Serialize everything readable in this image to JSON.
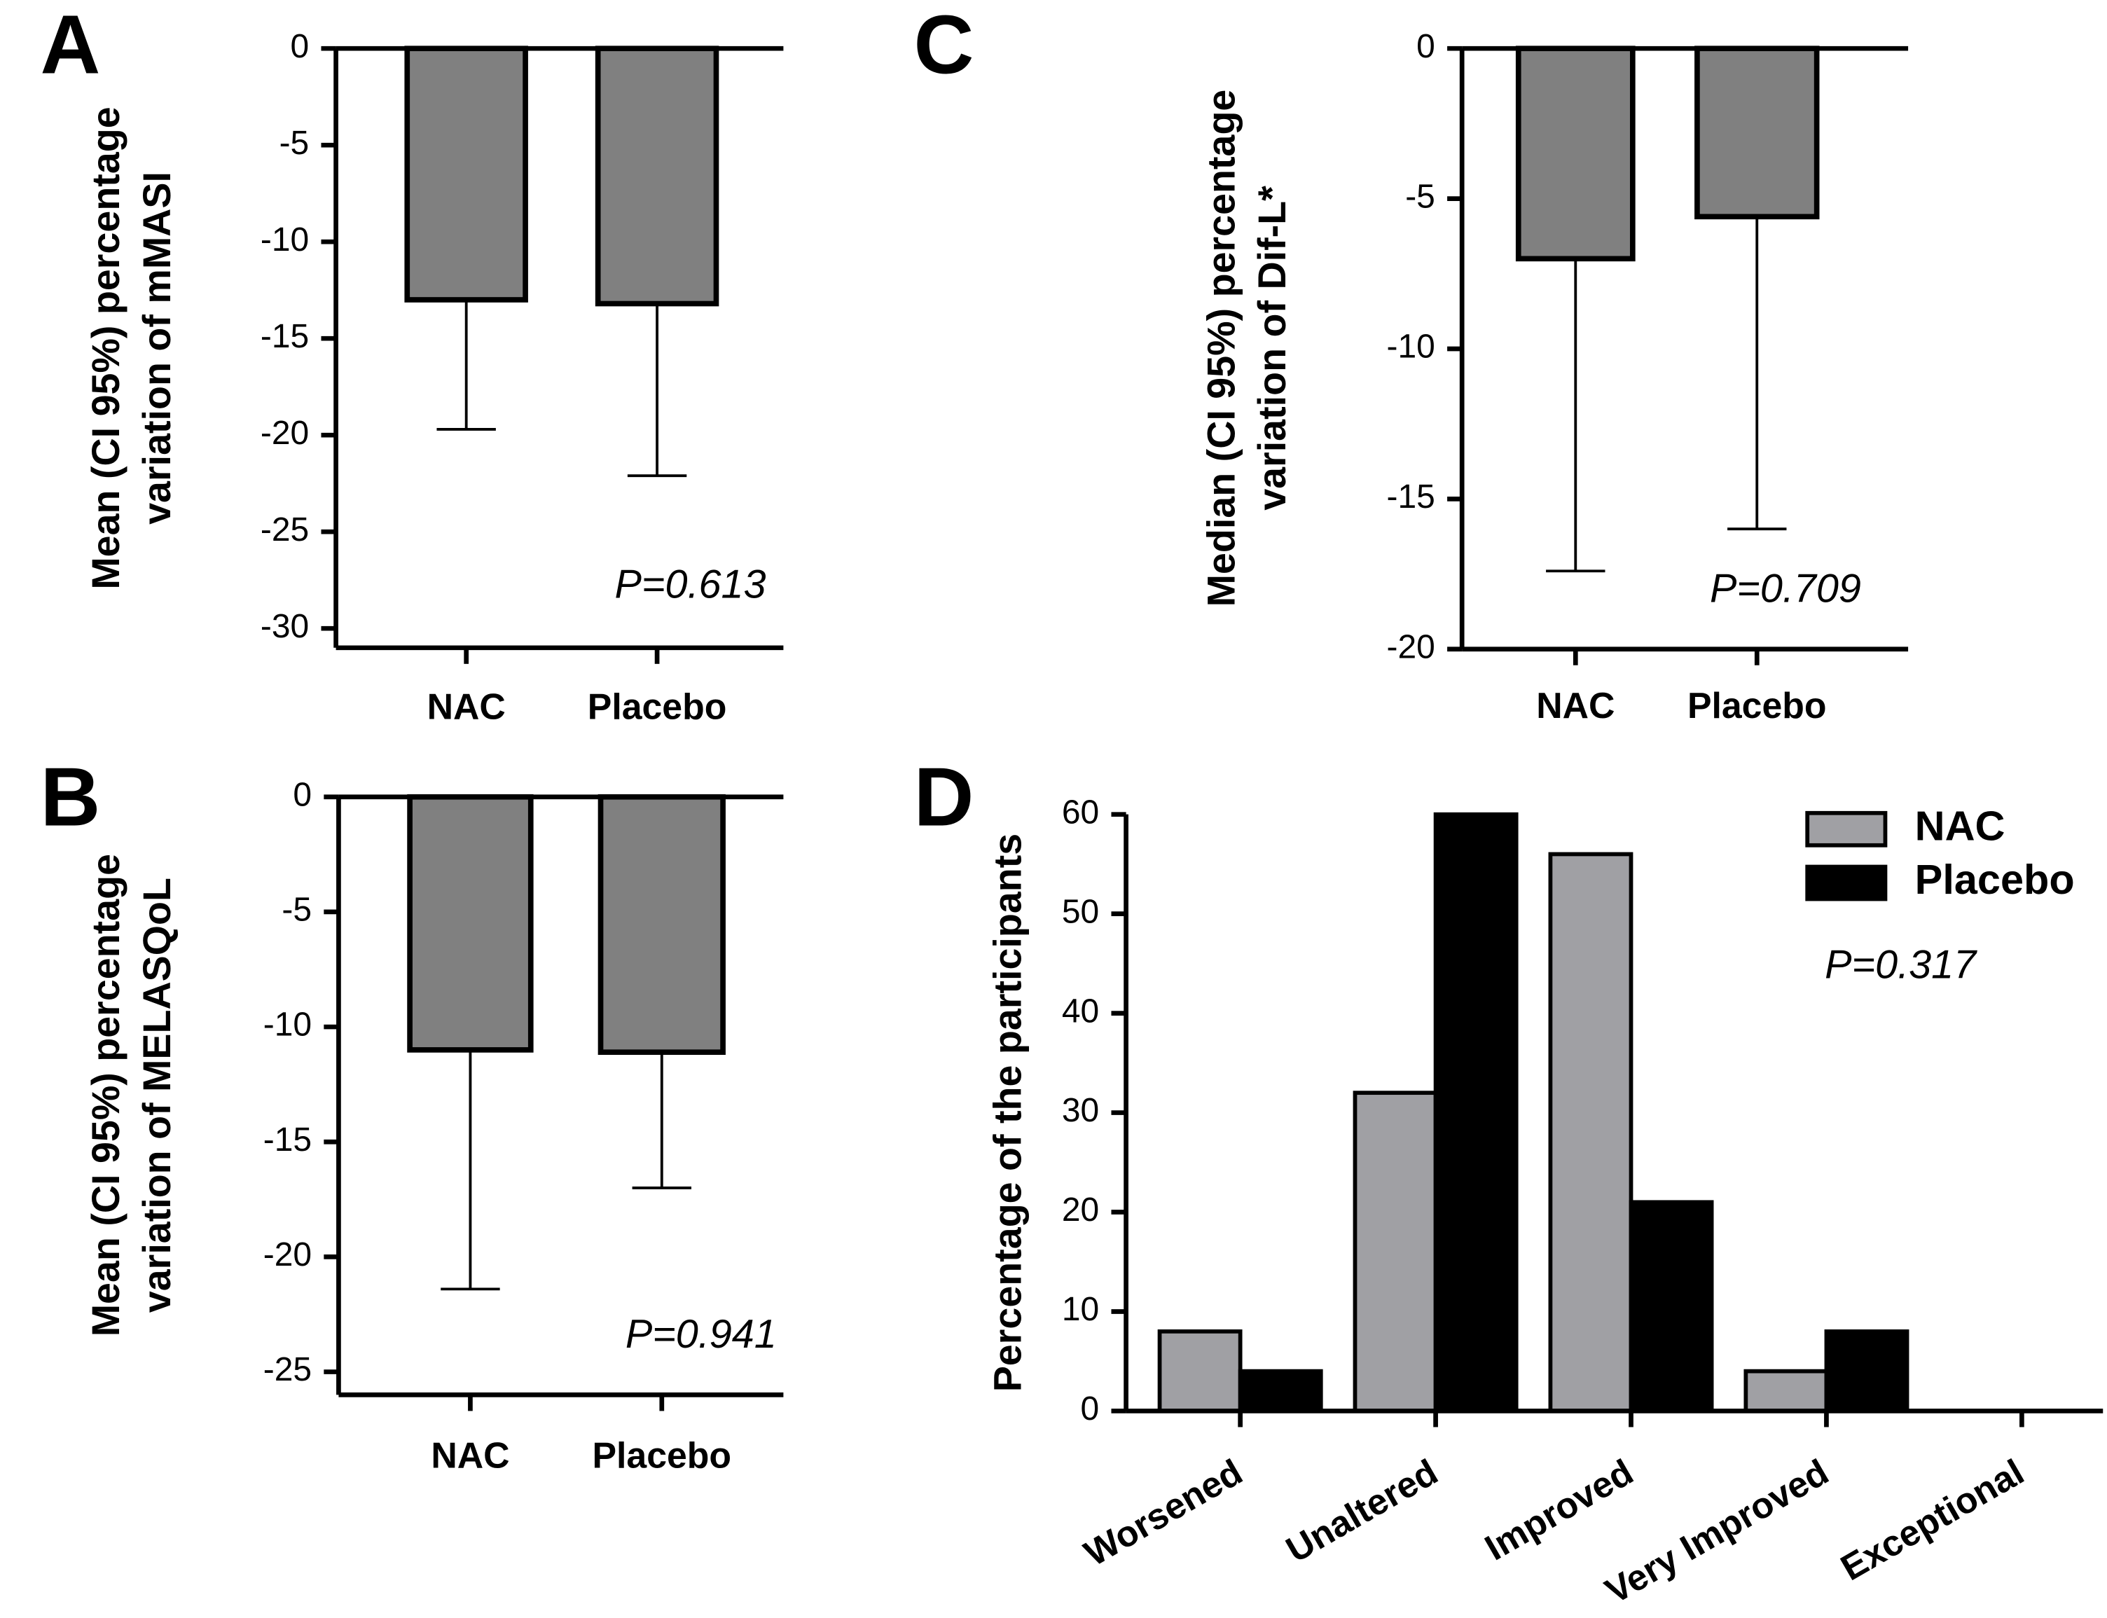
{
  "chart_data": [
    {
      "type": "bar",
      "panel": "A",
      "ylabel": [
        "Mean (CI 95%) percentage",
        "variation of mMASI"
      ],
      "categories": [
        "NAC",
        "Placebo"
      ],
      "values": [
        -13,
        -13.2
      ],
      "ci_lower": [
        -19.7,
        -22.1
      ],
      "color": "#808080",
      "ylim": [
        -31,
        0
      ],
      "yticks": [
        0,
        -5,
        -10,
        -15,
        -20,
        -25,
        -30
      ],
      "annotation": "P=0.613"
    },
    {
      "type": "bar",
      "panel": "B",
      "ylabel": [
        "Mean (CI 95%) percentage",
        "variation of MELASQoL"
      ],
      "categories": [
        "NAC",
        "Placebo"
      ],
      "values": [
        -11,
        -11.1
      ],
      "ci_lower": [
        -21.4,
        -17
      ],
      "color": "#808080",
      "ylim": [
        -26,
        0
      ],
      "yticks": [
        0,
        -5,
        -10,
        -15,
        -20,
        -25
      ],
      "annotation": "P=0.941"
    },
    {
      "type": "bar",
      "panel": "C",
      "ylabel": [
        "Median (CI 95%) percentage",
        "variation of Dif-L*"
      ],
      "categories": [
        "NAC",
        "Placebo"
      ],
      "values": [
        -7,
        -5.6
      ],
      "ci_lower": [
        -17.4,
        -16
      ],
      "color": "#808080",
      "ylim": [
        -20,
        0
      ],
      "yticks": [
        0,
        -5,
        -10,
        -15,
        -20
      ],
      "annotation": "P=0.709"
    },
    {
      "type": "grouped_bar",
      "panel": "D",
      "ylabel": [
        "Percentage of the participants"
      ],
      "categories": [
        "Worsened",
        "Unaltered",
        "Improved",
        "Very Improved",
        "Exceptional"
      ],
      "series": [
        {
          "name": "NAC",
          "color": "#a0a0a4",
          "values": [
            8,
            32,
            56,
            4,
            0
          ]
        },
        {
          "name": "Placebo",
          "color": "#000000",
          "values": [
            4,
            60,
            21,
            8,
            0
          ]
        }
      ],
      "ylim": [
        0,
        60
      ],
      "yticks": [
        0,
        10,
        20,
        30,
        40,
        50,
        60
      ],
      "legend": "top-right",
      "annotation": "P=0.317"
    }
  ]
}
